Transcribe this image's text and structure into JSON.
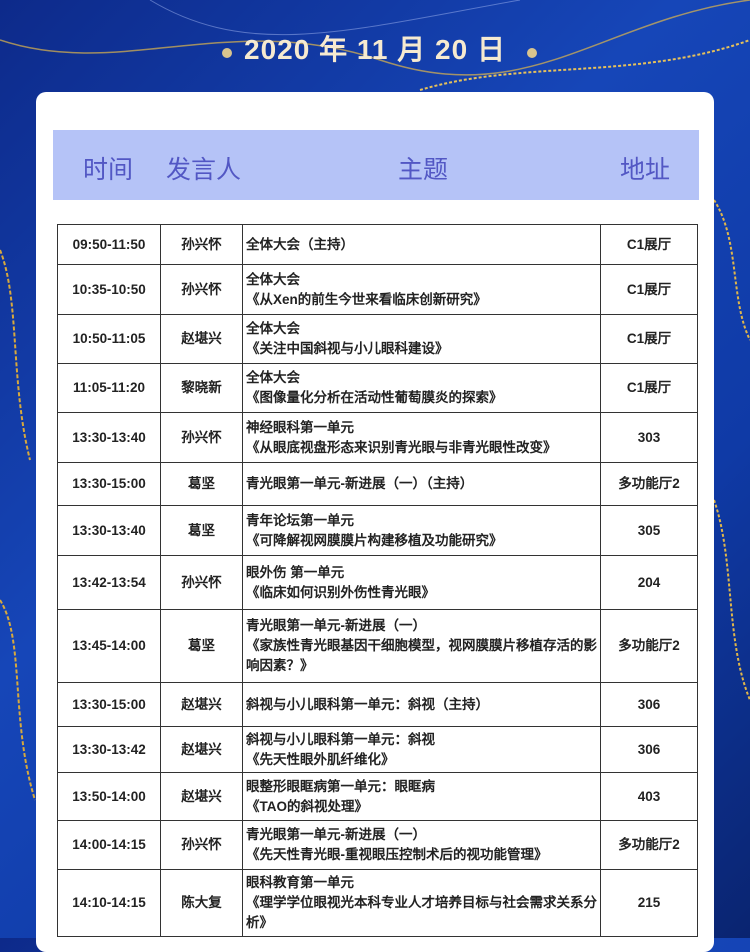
{
  "header": {
    "date": "2020 年 11 月 20 日"
  },
  "table": {
    "columns": [
      "时间",
      "发言人",
      "主题",
      "地址"
    ],
    "rows": [
      {
        "time": "09:50-11:50",
        "speaker": "孙兴怀",
        "topic": [
          "全体大会（主持）"
        ],
        "location": "C1展厅"
      },
      {
        "time": "10:35-10:50",
        "speaker": "孙兴怀",
        "topic": [
          "全体大会",
          "《从Xen的前生今世来看临床创新研究》"
        ],
        "location": "C1展厅"
      },
      {
        "time": "10:50-11:05",
        "speaker": "赵堪兴",
        "topic": [
          "全体大会",
          "《关注中国斜视与小儿眼科建设》"
        ],
        "location": "C1展厅"
      },
      {
        "time": "11:05-11:20",
        "speaker": "黎晓新",
        "topic": [
          "全体大会",
          "《图像量化分析在活动性葡萄膜炎的探索》"
        ],
        "location": "C1展厅"
      },
      {
        "time": "13:30-13:40",
        "speaker": "孙兴怀",
        "topic": [
          "神经眼科第一单元",
          "《从眼底视盘形态来识别青光眼与非青光眼性改变》"
        ],
        "location": "303"
      },
      {
        "time": "13:30-15:00",
        "speaker": "葛坚",
        "topic": [
          "青光眼第一单元-新进展（一）（主持）"
        ],
        "location": "多功能厅2"
      },
      {
        "time": "13:30-13:40",
        "speaker": "葛坚",
        "topic": [
          "青年论坛第一单元",
          "《可降解视网膜膜片构建移植及功能研究》"
        ],
        "location": "305"
      },
      {
        "time": "13:42-13:54",
        "speaker": "孙兴怀",
        "topic": [
          "眼外伤 第一单元",
          "《临床如何识别外伤性青光眼》"
        ],
        "location": "204"
      },
      {
        "time": "13:45-14:00",
        "speaker": "葛坚",
        "topic": [
          "青光眼第一单元-新进展（一）",
          "《家族性青光眼基因干细胞模型，视网膜膜片移植存活的影响因素？》"
        ],
        "location": "多功能厅2"
      },
      {
        "time": "13:30-15:00",
        "speaker": "赵堪兴",
        "topic": [
          "斜视与小儿眼科第一单元：斜视（主持）"
        ],
        "location": "306"
      },
      {
        "time": "13:30-13:42",
        "speaker": "赵堪兴",
        "topic": [
          "斜视与小儿眼科第一单元：斜视",
          "《先天性眼外肌纤维化》"
        ],
        "location": "306"
      },
      {
        "time": "13:50-14:00",
        "speaker": "赵堪兴",
        "topic": [
          "眼整形眼眶病第一单元：眼眶病",
          "《TAO的斜视处理》"
        ],
        "location": "403"
      },
      {
        "time": "14:00-14:15",
        "speaker": "孙兴怀",
        "topic": [
          "青光眼第一单元-新进展（一）",
          "《先天性青光眼-重视眼压控制术后的视功能管理》"
        ],
        "location": "多功能厅2"
      },
      {
        "time": "14:10-14:15",
        "speaker": "陈大复",
        "topic": [
          "眼科教育第一单元",
          "《理学学位眼视光本科专业人才培养目标与社会需求关系分析》"
        ],
        "location": "215"
      }
    ]
  }
}
